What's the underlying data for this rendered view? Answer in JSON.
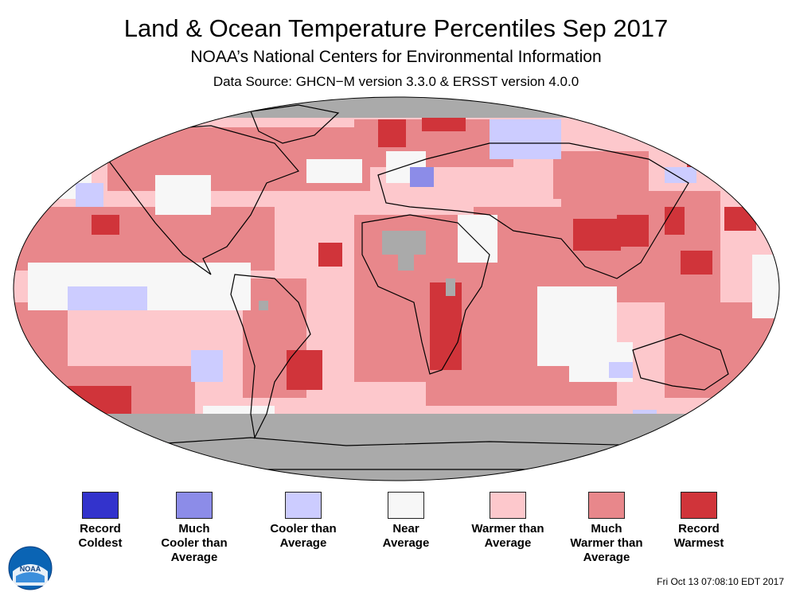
{
  "title": "Land & Ocean Temperature Percentiles Sep 2017",
  "subtitle": "NOAA’s National Centers for Environmental Information",
  "source": "Data Source: GHCN−M version 3.3.0 & ERSST version 4.0.0",
  "legend": [
    {
      "label": "Record\nColdest",
      "color": "#3333cc"
    },
    {
      "label": "Much\nCooler than\nAverage",
      "color": "#8c8ce8"
    },
    {
      "label": "Cooler than\nAverage",
      "color": "#ccccff"
    },
    {
      "label": "Near\nAverage",
      "color": "#f7f7f7"
    },
    {
      "label": "Warmer than\nAverage",
      "color": "#fdc8cc"
    },
    {
      "label": "Much\nWarmer than\nAverage",
      "color": "#e8878b"
    },
    {
      "label": "Record\nWarmest",
      "color": "#d0343a"
    }
  ],
  "missing_color": "#aaaaaa",
  "timestamp": "Fri Oct 13 07:08:10 EDT 2017",
  "logo": {
    "text": "NOAA"
  }
}
